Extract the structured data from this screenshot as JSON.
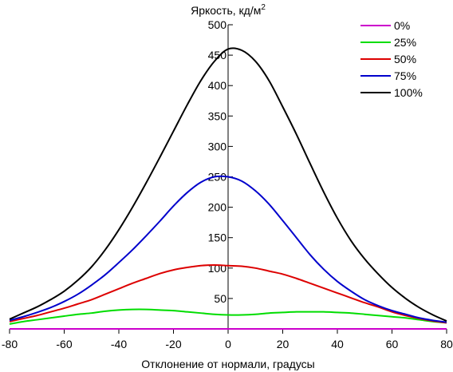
{
  "chart_data": {
    "type": "line",
    "title": "",
    "ylabel": "Яркость, кд/м",
    "ylabel_superscript": "2",
    "xlabel": "Отклонение от нормали, градусы",
    "xlim": [
      -80,
      80
    ],
    "ylim": [
      0,
      500
    ],
    "x_ticks": [
      -80,
      -60,
      -40,
      -20,
      0,
      20,
      40,
      60,
      80
    ],
    "y_ticks": [
      50,
      100,
      150,
      200,
      250,
      300,
      350,
      400,
      450,
      500
    ],
    "x_tick_labels": [
      "-80",
      "-60",
      "-40",
      "-20",
      "0",
      "20",
      "40",
      "60",
      "80"
    ],
    "y_tick_labels": [
      "50",
      "100",
      "150",
      "200",
      "250",
      "300",
      "350",
      "400",
      "450",
      "500"
    ],
    "grid": false,
    "legend_position": "top-right",
    "x": [
      -80,
      -75,
      -70,
      -65,
      -60,
      -55,
      -50,
      -45,
      -40,
      -35,
      -30,
      -25,
      -20,
      -15,
      -10,
      -5,
      0,
      5,
      10,
      15,
      20,
      25,
      30,
      35,
      40,
      45,
      50,
      55,
      60,
      65,
      70,
      75,
      80
    ],
    "series": [
      {
        "name": "0%",
        "color": "#cc00cc",
        "values": [
          0,
          0,
          0,
          0,
          0,
          0,
          0,
          0,
          0,
          0,
          0,
          0,
          0,
          0,
          0,
          0,
          0,
          0,
          0,
          0,
          0,
          0,
          0,
          0,
          0,
          0,
          0,
          0,
          0,
          0,
          0,
          0,
          0
        ]
      },
      {
        "name": "25%",
        "color": "#00dd00",
        "values": [
          8,
          12,
          15,
          18,
          21,
          24,
          26,
          29,
          31,
          32,
          32,
          31,
          30,
          28,
          26,
          24,
          23,
          23,
          24,
          26,
          27,
          28,
          28,
          28,
          27,
          26,
          24,
          22,
          20,
          18,
          15,
          12,
          10
        ]
      },
      {
        "name": "50%",
        "color": "#dd0000",
        "values": [
          12,
          17,
          22,
          28,
          34,
          41,
          48,
          57,
          66,
          75,
          83,
          91,
          97,
          101,
          104,
          105,
          104,
          103,
          100,
          95,
          90,
          83,
          75,
          67,
          59,
          51,
          43,
          36,
          28,
          22,
          17,
          13,
          10
        ]
      },
      {
        "name": "75%",
        "color": "#0000cc",
        "values": [
          14,
          20,
          27,
          35,
          45,
          57,
          72,
          89,
          109,
          130,
          153,
          177,
          202,
          224,
          241,
          250,
          250,
          243,
          227,
          205,
          178,
          150,
          122,
          98,
          78,
          62,
          48,
          38,
          30,
          24,
          18,
          14,
          11
        ]
      },
      {
        "name": "100%",
        "color": "#000000",
        "values": [
          16,
          26,
          36,
          48,
          62,
          80,
          102,
          130,
          163,
          200,
          240,
          282,
          325,
          368,
          408,
          440,
          460,
          458,
          440,
          408,
          365,
          320,
          272,
          225,
          182,
          145,
          115,
          90,
          68,
          50,
          35,
          23,
          13
        ]
      }
    ]
  }
}
